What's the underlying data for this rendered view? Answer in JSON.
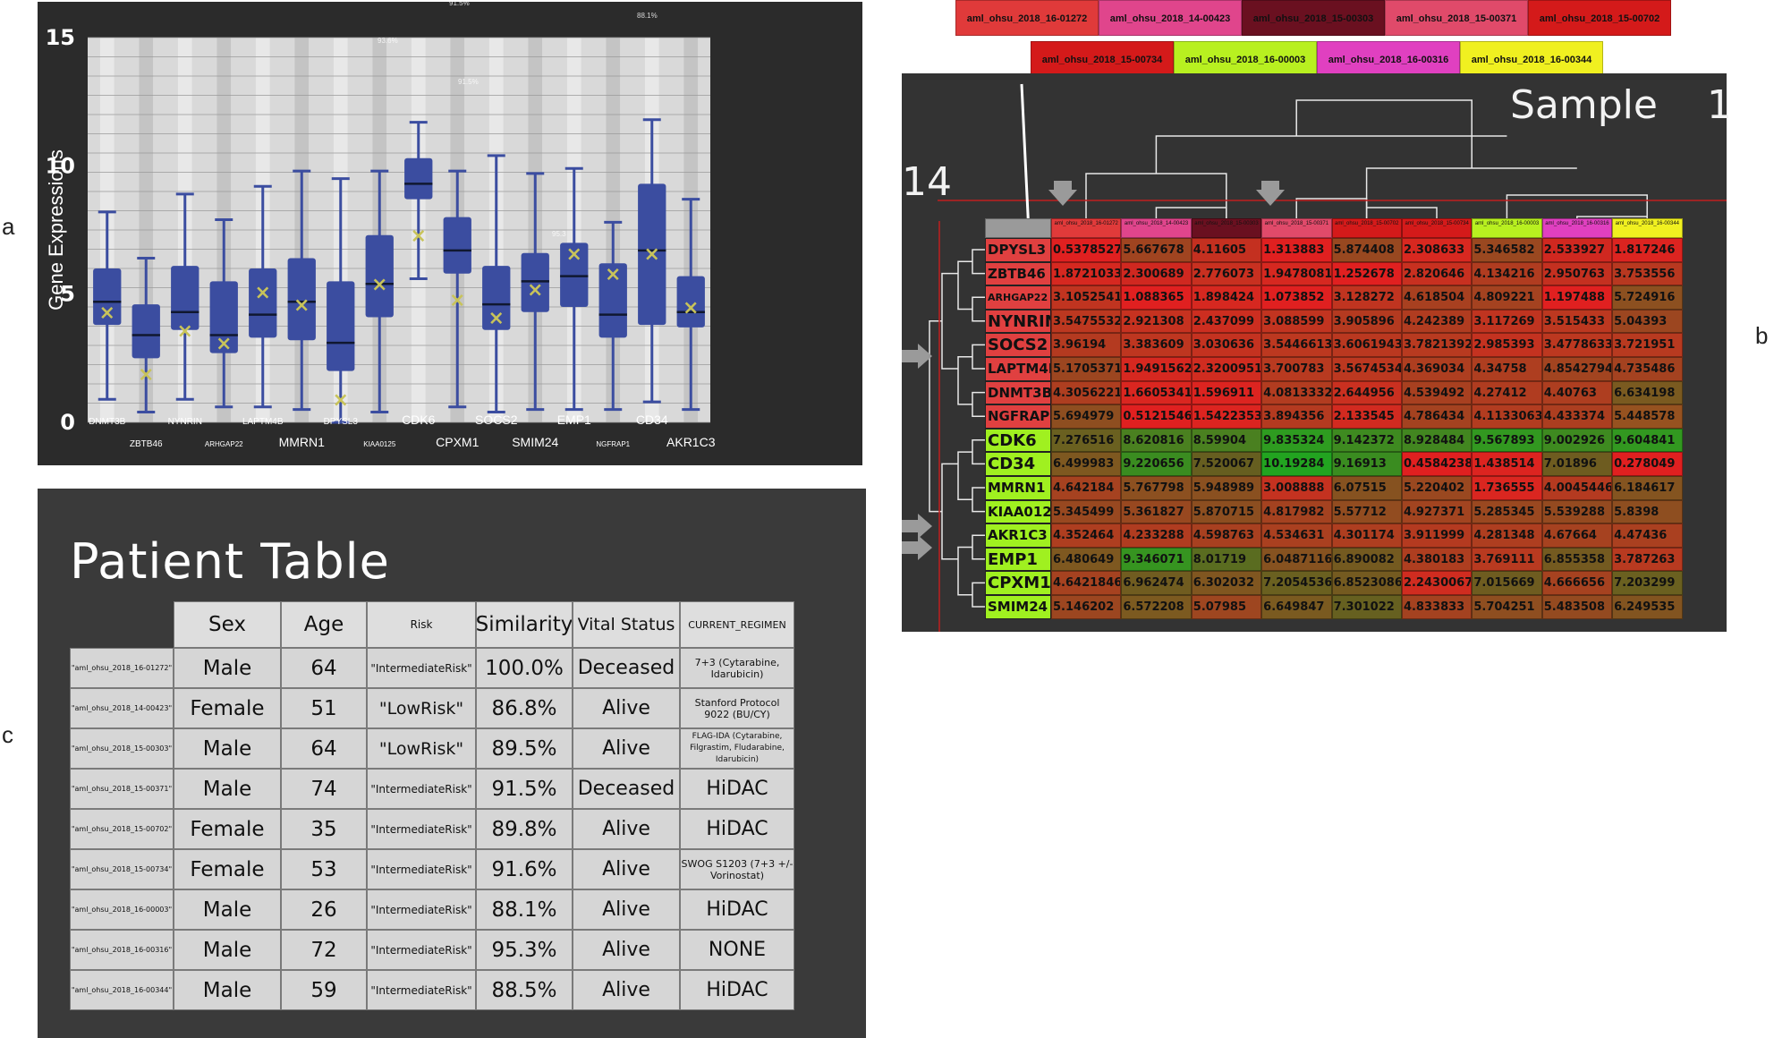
{
  "panel_letters": {
    "a": "a",
    "b": "b",
    "c": "c"
  },
  "chart_data": {
    "type": "box",
    "ylabel": "Gene Expressions",
    "ylim": [
      0,
      15
    ],
    "yticks": [
      "0",
      "5",
      "10",
      "15"
    ],
    "genes": [
      "DNMT3B",
      "ZBTB46",
      "NYNRIN",
      "ARHGAP22",
      "LAPTM4B",
      "MMRN1",
      "DPYSL3",
      "KIAA0125",
      "CDK6",
      "CPXM1",
      "SOCS2",
      "SMIM24",
      "EMP1",
      "NGFRAP1",
      "CD34",
      "AKR1C3"
    ],
    "boxes": [
      {
        "min": 0.9,
        "q1": 3.8,
        "median": 4.7,
        "q3": 6.0,
        "max": 8.2,
        "mean": 4.3
      },
      {
        "min": 0.4,
        "q1": 2.5,
        "median": 3.4,
        "q3": 4.6,
        "max": 6.4,
        "mean": 1.9
      },
      {
        "min": 0.9,
        "q1": 3.6,
        "median": 4.3,
        "q3": 6.1,
        "max": 8.9,
        "mean": 3.6
      },
      {
        "min": 0.6,
        "q1": 2.7,
        "median": 3.4,
        "q3": 5.5,
        "max": 7.9,
        "mean": 3.1
      },
      {
        "min": 0.6,
        "q1": 3.3,
        "median": 4.2,
        "q3": 6.0,
        "max": 9.2,
        "mean": 5.1
      },
      {
        "min": 0.5,
        "q1": 3.2,
        "median": 4.7,
        "q3": 6.4,
        "max": 9.8,
        "mean": 4.6
      },
      {
        "min": 0.0,
        "q1": 2.0,
        "median": 3.1,
        "q3": 5.5,
        "max": 9.5,
        "mean": 0.9
      },
      {
        "min": 0.4,
        "q1": 4.1,
        "median": 5.4,
        "q3": 7.3,
        "max": 9.8,
        "mean": 5.4
      },
      {
        "min": 5.6,
        "q1": 8.7,
        "median": 9.3,
        "q3": 10.3,
        "max": 11.7,
        "mean": 7.3
      },
      {
        "min": 0.6,
        "q1": 5.8,
        "median": 6.7,
        "q3": 8.0,
        "max": 9.8,
        "mean": 4.8
      },
      {
        "min": 0.4,
        "q1": 3.6,
        "median": 4.6,
        "q3": 6.1,
        "max": 10.4,
        "mean": 4.1
      },
      {
        "min": 0.5,
        "q1": 4.3,
        "median": 5.5,
        "q3": 6.6,
        "max": 9.7,
        "mean": 5.2
      },
      {
        "min": 0.5,
        "q1": 4.5,
        "median": 5.7,
        "q3": 7.0,
        "max": 9.9,
        "mean": 6.6
      },
      {
        "min": 0.5,
        "q1": 3.3,
        "median": 4.2,
        "q3": 6.2,
        "max": 7.8,
        "mean": 5.8
      },
      {
        "min": 0.8,
        "q1": 3.8,
        "median": 6.7,
        "q3": 9.3,
        "max": 11.8,
        "mean": 6.6
      },
      {
        "min": 0.5,
        "q1": 3.7,
        "median": 4.3,
        "q3": 5.7,
        "max": 8.7,
        "mean": 4.5
      }
    ],
    "annotations": [
      "91.5%",
      "88.1%",
      "93.6%",
      "91.5%",
      "95.3"
    ]
  },
  "heatmap": {
    "title": "Sample",
    "right_number": "1",
    "left_number": "14",
    "samples": [
      {
        "label": "aml_ohsu_2018_16-01272",
        "color": "#e03a3a"
      },
      {
        "label": "aml_ohsu_2018_14-00423",
        "color": "#e0458c"
      },
      {
        "label": "aml_ohsu_2018_15-00303",
        "color": "#6a1020"
      },
      {
        "label": "aml_ohsu_2018_15-00371",
        "color": "#e04a6a"
      },
      {
        "label": "aml_ohsu_2018_15-00702",
        "color": "#d41a1a"
      },
      {
        "label": "aml_ohsu_2018_15-00734",
        "color": "#d41a1a"
      },
      {
        "label": "aml_ohsu_2018_16-00003",
        "color": "#b8f020"
      },
      {
        "label": "aml_ohsu_2018_16-00316",
        "color": "#e040c0"
      },
      {
        "label": "aml_ohsu_2018_16-00344",
        "color": "#f0f020"
      }
    ],
    "genes": [
      {
        "name": "DPYSL3",
        "color": "#e04040",
        "values": [
          "0.5378527",
          "5.667678",
          "4.11605",
          "1.313883",
          "5.874408",
          "2.308633",
          "5.346582",
          "2.533927",
          "1.817246"
        ],
        "colors": [
          "#e02020",
          "#a04420",
          "#c43020",
          "#e02020",
          "#984820",
          "#d82820",
          "#9a4820",
          "#d02820",
          "#dc2420"
        ]
      },
      {
        "name": "ZBTB46",
        "color": "#e04040",
        "values": [
          "1.8721033",
          "2.300689",
          "2.776073",
          "1.9478081",
          "1.252678",
          "2.820646",
          "4.134216",
          "2.950763",
          "3.753556"
        ],
        "colors": [
          "#d62820",
          "#d02820",
          "#c83020",
          "#d62820",
          "#e02020",
          "#c83020",
          "#b03c20",
          "#c43020",
          "#b83820"
        ]
      },
      {
        "name": "ARHGAP22",
        "color": "#e04040",
        "values": [
          "3.1052541",
          "1.088365",
          "1.898424",
          "1.073852",
          "3.128272",
          "4.618504",
          "4.809221",
          "1.197488",
          "5.724916"
        ],
        "colors": [
          "#c03420",
          "#e02020",
          "#d62820",
          "#e02020",
          "#c03420",
          "#a84020",
          "#a44220",
          "#e02020",
          "#8c5020"
        ]
      },
      {
        "name": "NYNRIN",
        "color": "#e04040",
        "values": [
          "3.5475532",
          "2.921308",
          "2.437099",
          "3.088599",
          "3.905896",
          "4.242389",
          "3.117269",
          "3.515433",
          "5.04393"
        ],
        "colors": [
          "#bc3820",
          "#c63220",
          "#cc2e20",
          "#c23420",
          "#b43a20",
          "#b03c20",
          "#c03420",
          "#bc3820",
          "#9c4620"
        ]
      },
      {
        "name": "SOCS2",
        "color": "#e04040",
        "values": [
          "3.96194",
          "3.383609",
          "3.030636",
          "3.5446613",
          "3.6061943",
          "3.7821392",
          "2.985393",
          "3.4778633",
          "3.721951"
        ],
        "colors": [
          "#b43a20",
          "#be3620",
          "#c43220",
          "#bc3820",
          "#ba3820",
          "#b83a20",
          "#c43220",
          "#bc3820",
          "#b83a20"
        ]
      },
      {
        "name": "LAPTM4B",
        "color": "#e04040",
        "values": [
          "5.1705371",
          "1.9491562",
          "2.3200951",
          "3.700783",
          "3.5674534",
          "4.369034",
          "4.34758",
          "4.8542794",
          "4.735486"
        ],
        "colors": [
          "#9c4620",
          "#d62820",
          "#d02c20",
          "#b83a20",
          "#bc3820",
          "#ae3e20",
          "#ae3e20",
          "#a24420",
          "#a44220"
        ]
      },
      {
        "name": "DNMT3B",
        "color": "#e04040",
        "values": [
          "4.3056221",
          "1.6605341",
          "1.596911",
          "4.0813332",
          "2.644956",
          "4.539492",
          "4.27412",
          "4.40763",
          "6.634198"
        ],
        "colors": [
          "#ae3e20",
          "#da2620",
          "#dc2420",
          "#b23c20",
          "#ca3020",
          "#a84020",
          "#b03c20",
          "#ae3e20",
          "#7a5a20"
        ]
      },
      {
        "name": "NGFRAP1",
        "color": "#e04040",
        "values": [
          "5.694979",
          "0.5121546",
          "1.5422353",
          "3.894356",
          "2.133545",
          "4.786434",
          "4.1133063",
          "4.433374",
          "5.448578"
        ],
        "colors": [
          "#8e4e20",
          "#e02020",
          "#dc2420",
          "#b43a20",
          "#d22a20",
          "#a44220",
          "#b23c20",
          "#ac3e20",
          "#965220"
        ]
      },
      {
        "name": "CDK6",
        "color": "#a0f020",
        "values": [
          "7.276516",
          "8.620816",
          "8.59904",
          "9.835324",
          "9.142372",
          "8.928484",
          "9.567893",
          "9.002926",
          "9.604841"
        ],
        "colors": [
          "#6a6020",
          "#4a8020",
          "#4a8020",
          "#2e9c20",
          "#3e8a20",
          "#428620",
          "#329820",
          "#3e8a20",
          "#329820"
        ]
      },
      {
        "name": "CD34",
        "color": "#a0f020",
        "values": [
          "6.499983",
          "9.220656",
          "7.520067",
          "10.19284",
          "9.16913",
          "0.4584238",
          "1.438514",
          "7.01896",
          "0.278049"
        ],
        "colors": [
          "#7e5820",
          "#3a8c20",
          "#665e20",
          "#22a420",
          "#3a8c20",
          "#e02020",
          "#dc2420",
          "#6e5c20",
          "#e02020"
        ]
      },
      {
        "name": "MMRN1",
        "color": "#a0f020",
        "values": [
          "4.642184",
          "5.767798",
          "5.948989",
          "3.008888",
          "6.07515",
          "5.220402",
          "1.736555",
          "4.0045446",
          "6.184617"
        ],
        "colors": [
          "#a64220",
          "#8c5020",
          "#8a5020",
          "#c43220",
          "#865220",
          "#9a4820",
          "#da2620",
          "#b43a20",
          "#845420"
        ]
      },
      {
        "name": "KIAA0125",
        "color": "#a0f020",
        "values": [
          "5.345499",
          "5.361827",
          "5.870715",
          "4.817982",
          "5.57712",
          "4.927371",
          "5.285345",
          "5.539288",
          "5.8398"
        ],
        "colors": [
          "#984820",
          "#984820",
          "#8c4e20",
          "#a44220",
          "#924c20",
          "#a24420",
          "#9a4820",
          "#944a20",
          "#8e4e20"
        ]
      },
      {
        "name": "AKR1C3",
        "color": "#a0f020",
        "values": [
          "4.352464",
          "4.233288",
          "4.598763",
          "4.534631",
          "4.301174",
          "3.911999",
          "4.281348",
          "4.67664",
          "4.47436"
        ],
        "colors": [
          "#ae3e20",
          "#b03c20",
          "#a84020",
          "#aa4020",
          "#ae3e20",
          "#b43a20",
          "#ae3e20",
          "#a64220",
          "#aa4020"
        ]
      },
      {
        "name": "EMP1",
        "color": "#a0f020",
        "values": [
          "6.480649",
          "9.346071",
          "8.01719",
          "6.0487116",
          "6.890082",
          "4.380183",
          "3.769111",
          "6.855358",
          "3.787263"
        ],
        "colors": [
          "#7e5820",
          "#369420",
          "#5a6c20",
          "#865220",
          "#745a20",
          "#ae3e20",
          "#b83a20",
          "#745a20",
          "#b83a20"
        ]
      },
      {
        "name": "CPXM1",
        "color": "#a0f020",
        "values": [
          "4.6421846",
          "6.962474",
          "6.302032",
          "7.2054536",
          "6.8523086",
          "2.2430067",
          "7.015669",
          "4.666656",
          "7.203299"
        ],
        "colors": [
          "#a64220",
          "#705c20",
          "#805620",
          "#6a6020",
          "#745a20",
          "#d02c20",
          "#6e5c20",
          "#a64220",
          "#6a6020"
        ]
      },
      {
        "name": "SMIM24",
        "color": "#a0f020",
        "values": [
          "5.146202",
          "6.572208",
          "5.07985",
          "6.649847",
          "7.301022",
          "4.833833",
          "5.704251",
          "5.483508",
          "6.249535"
        ],
        "colors": [
          "#9c4620",
          "#7c5a20",
          "#9e4620",
          "#7a5a20",
          "#666020",
          "#a44220",
          "#8e4e20",
          "#944a20",
          "#825420"
        ]
      }
    ]
  },
  "patient_table": {
    "title": "Patient Table",
    "columns": [
      "Sex",
      "Age",
      "Risk",
      "Similarity",
      "Vital Status",
      "CURRENT_REGIMEN"
    ],
    "rows": [
      {
        "id": "\"aml_ohsu_2018_16-01272\"",
        "sex": "Male",
        "age": "64",
        "risk": "\"IntermediateRisk\"",
        "similarity": "100.0%",
        "vital": "Deceased",
        "regimen": "7+3 (Cytarabine, Idarubicin)"
      },
      {
        "id": "\"aml_ohsu_2018_14-00423\"",
        "sex": "Female",
        "age": "51",
        "risk": "\"LowRisk\"",
        "similarity": "86.8%",
        "vital": "Alive",
        "regimen": "Stanford Protocol 9022 (BU/CY)"
      },
      {
        "id": "\"aml_ohsu_2018_15-00303\"",
        "sex": "Male",
        "age": "64",
        "risk": "\"LowRisk\"",
        "similarity": "89.5%",
        "vital": "Alive",
        "regimen": "FLAG-IDA (Cytarabine, Filgrastim, Fludarabine, Idarubicin)"
      },
      {
        "id": "\"aml_ohsu_2018_15-00371\"",
        "sex": "Male",
        "age": "74",
        "risk": "\"IntermediateRisk\"",
        "similarity": "91.5%",
        "vital": "Deceased",
        "regimen": "HiDAC"
      },
      {
        "id": "\"aml_ohsu_2018_15-00702\"",
        "sex": "Female",
        "age": "35",
        "risk": "\"IntermediateRisk\"",
        "similarity": "89.8%",
        "vital": "Alive",
        "regimen": "HiDAC"
      },
      {
        "id": "\"aml_ohsu_2018_15-00734\"",
        "sex": "Female",
        "age": "53",
        "risk": "\"IntermediateRisk\"",
        "similarity": "91.6%",
        "vital": "Alive",
        "regimen": "SWOG S1203 (7+3 +/- Vorinostat)"
      },
      {
        "id": "\"aml_ohsu_2018_16-00003\"",
        "sex": "Male",
        "age": "26",
        "risk": "\"IntermediateRisk\"",
        "similarity": "88.1%",
        "vital": "Alive",
        "regimen": "HiDAC"
      },
      {
        "id": "\"aml_ohsu_2018_16-00316\"",
        "sex": "Male",
        "age": "72",
        "risk": "\"IntermediateRisk\"",
        "similarity": "95.3%",
        "vital": "Alive",
        "regimen": "NONE"
      },
      {
        "id": "\"aml_ohsu_2018_16-00344\"",
        "sex": "Male",
        "age": "59",
        "risk": "\"IntermediateRisk\"",
        "similarity": "88.5%",
        "vital": "Alive",
        "regimen": "HiDAC"
      }
    ]
  }
}
